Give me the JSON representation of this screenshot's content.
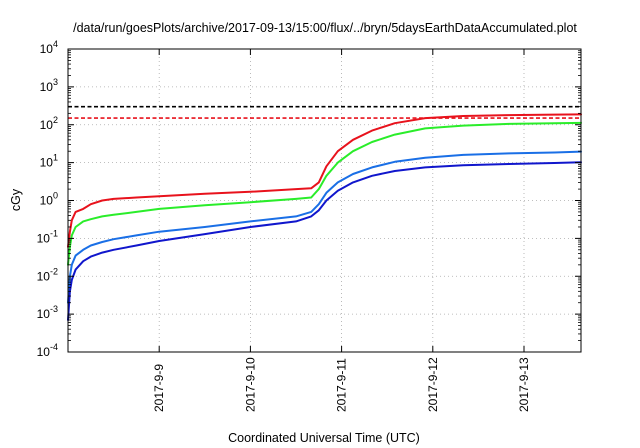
{
  "chart_data": {
    "type": "line",
    "title": "/data/run/goesPlots/archive/2017-09-13/15:00/flux/../bryn/5daysEarthDataAccumulated.plot",
    "xlabel": "Coordinated Universal Time (UTC)",
    "ylabel": "cGy",
    "x_type": "date",
    "xlim": [
      "2017-09-08T00:00",
      "2017-09-13T15:00"
    ],
    "ylim": [
      0.0001,
      10000
    ],
    "yscale": "log",
    "grid": true,
    "x_ticks": [
      "2017-9-9",
      "2017-9-10",
      "2017-9-11",
      "2017-9-12",
      "2017-9-13"
    ],
    "y_ticks": [
      {
        "base": "10",
        "exp": "-4",
        "value": 0.0001
      },
      {
        "base": "10",
        "exp": "-3",
        "value": 0.001
      },
      {
        "base": "10",
        "exp": "-2",
        "value": 0.01
      },
      {
        "base": "10",
        "exp": "-1",
        "value": 0.1
      },
      {
        "base": "10",
        "exp": "0",
        "value": 1
      },
      {
        "base": "10",
        "exp": "1",
        "value": 10
      },
      {
        "base": "10",
        "exp": "2",
        "value": 100
      },
      {
        "base": "10",
        "exp": "3",
        "value": 1000
      },
      {
        "base": "10",
        "exp": "4",
        "value": 10000
      }
    ],
    "series": [
      {
        "color": "#e8121c",
        "points": [
          [
            "2017-09-08T00:00",
            0.06
          ],
          [
            "2017-09-08T00:30",
            0.15
          ],
          [
            "2017-09-08T01:00",
            0.3
          ],
          [
            "2017-09-08T02:00",
            0.5
          ],
          [
            "2017-09-08T04:00",
            0.6
          ],
          [
            "2017-09-08T06:00",
            0.8
          ],
          [
            "2017-09-08T09:00",
            1.0
          ],
          [
            "2017-09-08T12:00",
            1.1
          ],
          [
            "2017-09-08T18:00",
            1.2
          ],
          [
            "2017-09-09T00:00",
            1.3
          ],
          [
            "2017-09-09T12:00",
            1.5
          ],
          [
            "2017-09-10T00:00",
            1.7
          ],
          [
            "2017-09-10T12:00",
            2.0
          ],
          [
            "2017-09-10T16:00",
            2.1
          ],
          [
            "2017-09-10T18:00",
            3.0
          ],
          [
            "2017-09-10T20:00",
            8.0
          ],
          [
            "2017-09-10T23:00",
            20
          ],
          [
            "2017-09-11T03:00",
            40
          ],
          [
            "2017-09-11T08:00",
            70
          ],
          [
            "2017-09-11T14:00",
            110
          ],
          [
            "2017-09-11T22:00",
            150
          ],
          [
            "2017-09-12T08:00",
            170
          ],
          [
            "2017-09-12T20:00",
            180
          ],
          [
            "2017-09-13T08:00",
            185
          ],
          [
            "2017-09-13T15:00",
            188
          ]
        ]
      },
      {
        "color": "#2aed2a",
        "points": [
          [
            "2017-09-08T00:00",
            0.02
          ],
          [
            "2017-09-08T00:30",
            0.06
          ],
          [
            "2017-09-08T01:00",
            0.12
          ],
          [
            "2017-09-08T02:00",
            0.2
          ],
          [
            "2017-09-08T04:00",
            0.28
          ],
          [
            "2017-09-08T06:00",
            0.32
          ],
          [
            "2017-09-08T09:00",
            0.38
          ],
          [
            "2017-09-08T12:00",
            0.42
          ],
          [
            "2017-09-08T18:00",
            0.5
          ],
          [
            "2017-09-09T00:00",
            0.6
          ],
          [
            "2017-09-09T12:00",
            0.75
          ],
          [
            "2017-09-10T00:00",
            0.9
          ],
          [
            "2017-09-10T12:00",
            1.1
          ],
          [
            "2017-09-10T16:00",
            1.2
          ],
          [
            "2017-09-10T18:00",
            2.0
          ],
          [
            "2017-09-10T20:00",
            4.5
          ],
          [
            "2017-09-10T23:00",
            10
          ],
          [
            "2017-09-11T03:00",
            20
          ],
          [
            "2017-09-11T08:00",
            35
          ],
          [
            "2017-09-11T14:00",
            55
          ],
          [
            "2017-09-11T22:00",
            80
          ],
          [
            "2017-09-12T08:00",
            95
          ],
          [
            "2017-09-12T20:00",
            105
          ],
          [
            "2017-09-13T08:00",
            110
          ],
          [
            "2017-09-13T15:00",
            112
          ]
        ]
      },
      {
        "color": "#1a6fe6",
        "points": [
          [
            "2017-09-08T00:00",
            0.002
          ],
          [
            "2017-09-08T00:30",
            0.01
          ],
          [
            "2017-09-08T01:00",
            0.02
          ],
          [
            "2017-09-08T02:00",
            0.035
          ],
          [
            "2017-09-08T04:00",
            0.05
          ],
          [
            "2017-09-08T06:00",
            0.065
          ],
          [
            "2017-09-08T09:00",
            0.08
          ],
          [
            "2017-09-08T12:00",
            0.095
          ],
          [
            "2017-09-08T18:00",
            0.12
          ],
          [
            "2017-09-09T00:00",
            0.15
          ],
          [
            "2017-09-09T12:00",
            0.2
          ],
          [
            "2017-09-10T00:00",
            0.28
          ],
          [
            "2017-09-10T12:00",
            0.38
          ],
          [
            "2017-09-10T16:00",
            0.5
          ],
          [
            "2017-09-10T18:00",
            0.8
          ],
          [
            "2017-09-10T20:00",
            1.6
          ],
          [
            "2017-09-10T23:00",
            3.0
          ],
          [
            "2017-09-11T03:00",
            5.0
          ],
          [
            "2017-09-11T08:00",
            7.5
          ],
          [
            "2017-09-11T14:00",
            10.5
          ],
          [
            "2017-09-11T22:00",
            13.5
          ],
          [
            "2017-09-12T08:00",
            16
          ],
          [
            "2017-09-12T20:00",
            17.5
          ],
          [
            "2017-09-13T08:00",
            18.5
          ],
          [
            "2017-09-13T15:00",
            19.5
          ]
        ]
      },
      {
        "color": "#1016cc",
        "points": [
          [
            "2017-09-08T00:00",
            0.0007
          ],
          [
            "2017-09-08T00:30",
            0.004
          ],
          [
            "2017-09-08T01:00",
            0.008
          ],
          [
            "2017-09-08T02:00",
            0.015
          ],
          [
            "2017-09-08T04:00",
            0.025
          ],
          [
            "2017-09-08T06:00",
            0.033
          ],
          [
            "2017-09-08T09:00",
            0.042
          ],
          [
            "2017-09-08T12:00",
            0.05
          ],
          [
            "2017-09-08T18:00",
            0.065
          ],
          [
            "2017-09-09T00:00",
            0.085
          ],
          [
            "2017-09-09T12:00",
            0.13
          ],
          [
            "2017-09-10T00:00",
            0.2
          ],
          [
            "2017-09-10T12:00",
            0.28
          ],
          [
            "2017-09-10T16:00",
            0.38
          ],
          [
            "2017-09-10T18:00",
            0.55
          ],
          [
            "2017-09-10T20:00",
            1.0
          ],
          [
            "2017-09-10T23:00",
            1.8
          ],
          [
            "2017-09-11T03:00",
            3.0
          ],
          [
            "2017-09-11T08:00",
            4.5
          ],
          [
            "2017-09-11T14:00",
            6.0
          ],
          [
            "2017-09-11T22:00",
            7.5
          ],
          [
            "2017-09-12T08:00",
            8.5
          ],
          [
            "2017-09-12T20:00",
            9.2
          ],
          [
            "2017-09-13T08:00",
            9.8
          ],
          [
            "2017-09-13T15:00",
            10.2
          ]
        ]
      }
    ],
    "reference_lines": [
      {
        "value": 300,
        "color": "#000000",
        "style": "dashed"
      },
      {
        "value": 150,
        "color": "#e8121c",
        "style": "dashed"
      }
    ]
  }
}
